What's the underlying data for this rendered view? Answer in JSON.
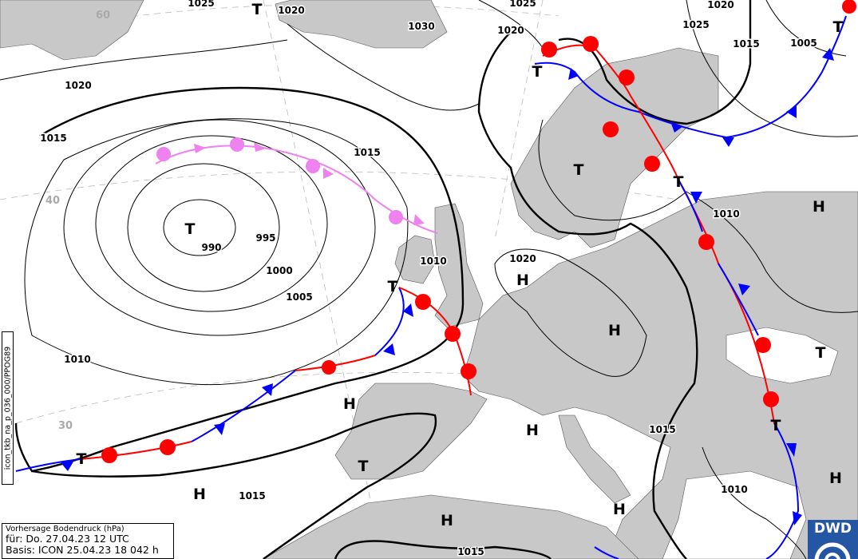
{
  "info_box": {
    "line1": "Vorhersage Bodendruck (hPa)",
    "line2": "für:  Do. 27.04.23  12 UTC",
    "line3": "Basis: ICON  25.04.23 18  042 h"
  },
  "side_label": "icon_tkb_na_p_036_000/PPOG89",
  "logo": "DWD",
  "latitude_labels": [
    "60",
    "40",
    "30"
  ],
  "isobar_labels": [
    "1025",
    "1020",
    "1030",
    "1025",
    "1020",
    "1020",
    "1025",
    "1015",
    "1005",
    "1020",
    "1015",
    "1015",
    "990",
    "995",
    "1000",
    "1005",
    "1010",
    "1020",
    "1010",
    "1010",
    "1015",
    "1015",
    "1010",
    "1015"
  ],
  "pressure_centers": [
    "T",
    "T",
    "T",
    "T",
    "T",
    "T",
    "H",
    "H",
    "H",
    "T",
    "H",
    "H",
    "T",
    "T",
    "H",
    "H",
    "H",
    "T",
    "H",
    "T"
  ],
  "colors": {
    "land": "#c8c8c8",
    "sea": "#ffffff",
    "cold_front": "#0000ff",
    "warm_front": "#ff0000",
    "occlusion": "#ee82ee",
    "logo": "#2456a4"
  }
}
